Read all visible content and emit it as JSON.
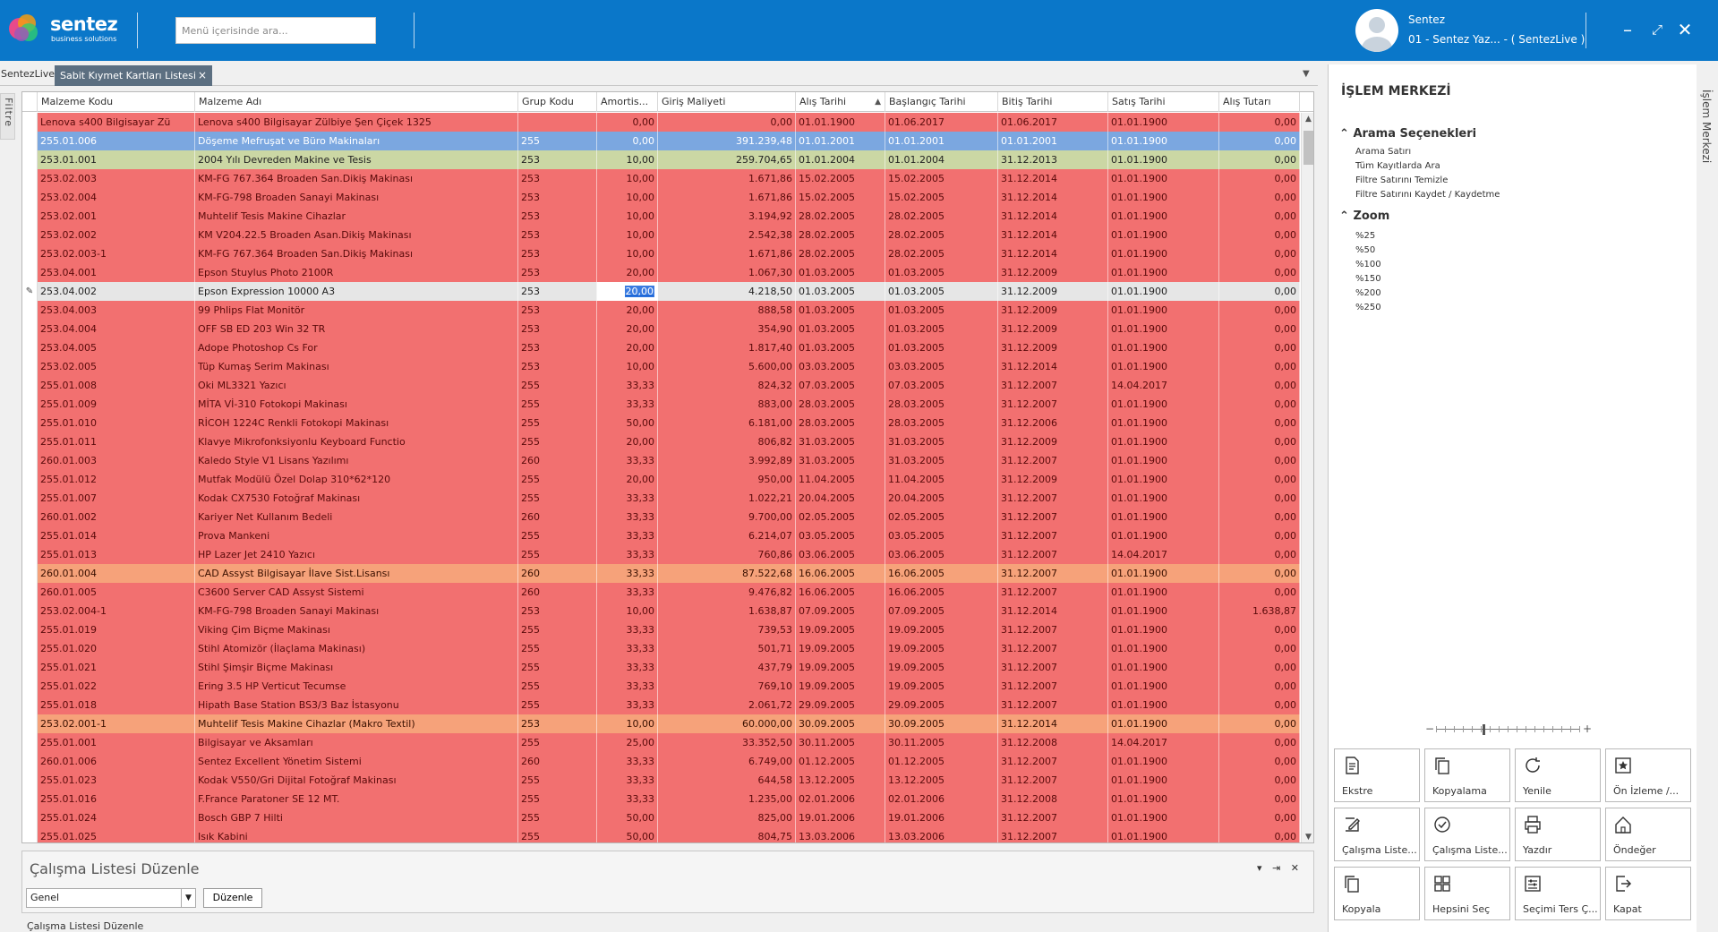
{
  "brand": {
    "name": "sentez",
    "sub": "business solutions"
  },
  "search": {
    "placeholder": "Menü içerisinde ara..."
  },
  "user": {
    "name": "Sentez",
    "company": "01 - Sentez Yaz... - ( SentezLive )"
  },
  "tabs": {
    "home": "SentezLive",
    "active": "Sabit Kıymet Kartları Listesi",
    "close": "×"
  },
  "filter_tab": "Filtre",
  "grid": {
    "columns": [
      "Malzeme Kodu",
      "Malzeme Adı",
      "Grup Kodu",
      "Amortis...",
      "Giriş Maliyeti",
      "Alış Tarihi",
      "Başlangıç Tarihi",
      "Bitiş Tarihi",
      "Satış Tarihi",
      "Alış Tutarı"
    ],
    "sorted_column": "Alış Tarihi",
    "rows": [
      {
        "c": [
          "Lenova s400 Bilgisayar Zü",
          "Lenova s400 Bilgisayar Zülbiye Şen Çiçek  1325",
          "",
          "0,00",
          "0,00",
          "01.01.1900",
          "01.06.2017",
          "01.06.2017",
          "01.01.1900",
          "0,00"
        ],
        "s": "r"
      },
      {
        "c": [
          "255.01.006",
          "Döşeme Mefruşat ve Büro Makinaları",
          "255",
          "0,00",
          "391.239,48",
          "01.01.2001",
          "01.01.2001",
          "01.01.2001",
          "01.01.1900",
          "0,00"
        ],
        "s": "sel"
      },
      {
        "c": [
          "253.01.001",
          "2004 Yılı Devreden Makine ve Tesis",
          "253",
          "10,00",
          "259.704,65",
          "01.01.2004",
          "01.01.2004",
          "31.12.2013",
          "01.01.1900",
          "0,00"
        ],
        "s": "grn"
      },
      {
        "c": [
          "253.02.003",
          "KM-FG 767.364 Broaden San.Dikiş Makinası",
          "253",
          "10,00",
          "1.671,86",
          "15.02.2005",
          "15.02.2005",
          "31.12.2014",
          "01.01.1900",
          "0,00"
        ],
        "s": "r"
      },
      {
        "c": [
          "253.02.004",
          "KM-FG-798 Broaden Sanayi Makinası",
          "253",
          "10,00",
          "1.671,86",
          "15.02.2005",
          "15.02.2005",
          "31.12.2014",
          "01.01.1900",
          "0,00"
        ],
        "s": "r"
      },
      {
        "c": [
          "253.02.001",
          "Muhtelif Tesis Makine Cihazlar",
          "253",
          "10,00",
          "3.194,92",
          "28.02.2005",
          "28.02.2005",
          "31.12.2014",
          "01.01.1900",
          "0,00"
        ],
        "s": "r"
      },
      {
        "c": [
          "253.02.002",
          "KM V204.22.5 Broaden Asan.Dikiş Makinası",
          "253",
          "10,00",
          "2.542,38",
          "28.02.2005",
          "28.02.2005",
          "31.12.2014",
          "01.01.1900",
          "0,00"
        ],
        "s": "r"
      },
      {
        "c": [
          "253.02.003-1",
          "KM-FG 767.364 Broaden San.Dikiş Makinası",
          "253",
          "10,00",
          "1.671,86",
          "28.02.2005",
          "28.02.2005",
          "31.12.2014",
          "01.01.1900",
          "0,00"
        ],
        "s": "r"
      },
      {
        "c": [
          "253.04.001",
          "Epson Stuylus Photo 2100R",
          "253",
          "20,00",
          "1.067,30",
          "01.03.2005",
          "01.03.2005",
          "31.12.2009",
          "01.01.1900",
          "0,00"
        ],
        "s": "r"
      },
      {
        "c": [
          "253.04.002",
          "Epson Expression 10000 A3",
          "253",
          "20,00",
          "4.218,50",
          "01.03.2005",
          "01.03.2005",
          "31.12.2009",
          "01.01.1900",
          "0,00"
        ],
        "s": "foc",
        "edit": true
      },
      {
        "c": [
          "253.04.003",
          "99 Phlips Flat Monitör",
          "253",
          "20,00",
          "888,58",
          "01.03.2005",
          "01.03.2005",
          "31.12.2009",
          "01.01.1900",
          "0,00"
        ],
        "s": "r"
      },
      {
        "c": [
          "253.04.004",
          "OFF SB ED 203 Win 32 TR",
          "253",
          "20,00",
          "354,90",
          "01.03.2005",
          "01.03.2005",
          "31.12.2009",
          "01.01.1900",
          "0,00"
        ],
        "s": "r"
      },
      {
        "c": [
          "253.04.005",
          "Adope Photoshop Cs For",
          "253",
          "20,00",
          "1.817,40",
          "01.03.2005",
          "01.03.2005",
          "31.12.2009",
          "01.01.1900",
          "0,00"
        ],
        "s": "r"
      },
      {
        "c": [
          "253.02.005",
          "Tüp Kumaş Serim Makinası",
          "253",
          "10,00",
          "5.600,00",
          "03.03.2005",
          "03.03.2005",
          "31.12.2014",
          "01.01.1900",
          "0,00"
        ],
        "s": "r"
      },
      {
        "c": [
          "255.01.008",
          "Oki ML3321 Yazıcı",
          "255",
          "33,33",
          "824,32",
          "07.03.2005",
          "07.03.2005",
          "31.12.2007",
          "14.04.2017",
          "0,00"
        ],
        "s": "r"
      },
      {
        "c": [
          "255.01.009",
          "MİTA Vİ-310 Fotokopi Makinası",
          "255",
          "33,33",
          "883,00",
          "28.03.2005",
          "28.03.2005",
          "31.12.2007",
          "01.01.1900",
          "0,00"
        ],
        "s": "r"
      },
      {
        "c": [
          "255.01.010",
          "RİCOH 1224C Renkli Fotokopi Makinası",
          "255",
          "50,00",
          "6.181,00",
          "28.03.2005",
          "28.03.2005",
          "31.12.2006",
          "01.01.1900",
          "0,00"
        ],
        "s": "r"
      },
      {
        "c": [
          "255.01.011",
          "Klavye Mikrofonksiyonlu Keyboard Functio",
          "255",
          "20,00",
          "806,82",
          "31.03.2005",
          "31.03.2005",
          "31.12.2009",
          "01.01.1900",
          "0,00"
        ],
        "s": "r"
      },
      {
        "c": [
          "260.01.003",
          "Kaledo Style V1 Lisans Yazılımı",
          "260",
          "33,33",
          "3.992,89",
          "31.03.2005",
          "31.03.2005",
          "31.12.2007",
          "01.01.1900",
          "0,00"
        ],
        "s": "r"
      },
      {
        "c": [
          "255.01.012",
          "Mutfak Modülü Özel Dolap 310*62*120",
          "255",
          "20,00",
          "950,00",
          "11.04.2005",
          "11.04.2005",
          "31.12.2009",
          "01.01.1900",
          "0,00"
        ],
        "s": "r"
      },
      {
        "c": [
          "255.01.007",
          "Kodak CX7530 Fotoğraf Makinası",
          "255",
          "33,33",
          "1.022,21",
          "20.04.2005",
          "20.04.2005",
          "31.12.2007",
          "01.01.1900",
          "0,00"
        ],
        "s": "r"
      },
      {
        "c": [
          "260.01.002",
          "Kariyer Net Kullanım Bedeli",
          "260",
          "33,33",
          "9.700,00",
          "02.05.2005",
          "02.05.2005",
          "31.12.2007",
          "01.01.1900",
          "0,00"
        ],
        "s": "r"
      },
      {
        "c": [
          "255.01.014",
          "Prova Mankeni",
          "255",
          "33,33",
          "6.214,07",
          "03.05.2005",
          "03.05.2005",
          "31.12.2007",
          "01.01.1900",
          "0,00"
        ],
        "s": "r"
      },
      {
        "c": [
          "255.01.013",
          "HP Lazer Jet 2410 Yazıcı",
          "255",
          "33,33",
          "760,86",
          "03.06.2005",
          "03.06.2005",
          "31.12.2007",
          "14.04.2017",
          "0,00"
        ],
        "s": "r"
      },
      {
        "c": [
          "260.01.004",
          "CAD Assyst Bilgisayar İlave Sist.Lisansı",
          "260",
          "33,33",
          "87.522,68",
          "16.06.2005",
          "16.06.2005",
          "31.12.2007",
          "01.01.1900",
          "0,00"
        ],
        "s": "org"
      },
      {
        "c": [
          "260.01.005",
          "C3600 Server CAD Assyst Sistemi",
          "260",
          "33,33",
          "9.476,82",
          "16.06.2005",
          "16.06.2005",
          "31.12.2007",
          "01.01.1900",
          "0,00"
        ],
        "s": "r"
      },
      {
        "c": [
          "253.02.004-1",
          "KM-FG-798 Broaden Sanayi Makinası",
          "253",
          "10,00",
          "1.638,87",
          "07.09.2005",
          "07.09.2005",
          "31.12.2014",
          "01.01.1900",
          "1.638,87"
        ],
        "s": "r"
      },
      {
        "c": [
          "255.01.019",
          "Viking Çim Biçme Makinası",
          "255",
          "33,33",
          "739,53",
          "19.09.2005",
          "19.09.2005",
          "31.12.2007",
          "01.01.1900",
          "0,00"
        ],
        "s": "r"
      },
      {
        "c": [
          "255.01.020",
          "Stihl Atomizör (İlaçlama Makinası)",
          "255",
          "33,33",
          "501,71",
          "19.09.2005",
          "19.09.2005",
          "31.12.2007",
          "01.01.1900",
          "0,00"
        ],
        "s": "r"
      },
      {
        "c": [
          "255.01.021",
          "Stihl Şimşir Biçme Makinası",
          "255",
          "33,33",
          "437,79",
          "19.09.2005",
          "19.09.2005",
          "31.12.2007",
          "01.01.1900",
          "0,00"
        ],
        "s": "r"
      },
      {
        "c": [
          "255.01.022",
          "Ering 3.5 HP Verticut Tecumse",
          "255",
          "33,33",
          "769,10",
          "19.09.2005",
          "19.09.2005",
          "31.12.2007",
          "01.01.1900",
          "0,00"
        ],
        "s": "r"
      },
      {
        "c": [
          "255.01.018",
          "Hipath Base Station BS3/3 Baz İstasyonu",
          "255",
          "33,33",
          "2.061,72",
          "29.09.2005",
          "29.09.2005",
          "31.12.2007",
          "01.01.1900",
          "0,00"
        ],
        "s": "r"
      },
      {
        "c": [
          "253.02.001-1",
          "Muhtelif Tesis Makine Cihazlar (Makro Textil)",
          "253",
          "10,00",
          "60.000,00",
          "30.09.2005",
          "30.09.2005",
          "31.12.2014",
          "01.01.1900",
          "0,00"
        ],
        "s": "org"
      },
      {
        "c": [
          "255.01.001",
          "Bilgisayar ve Aksamları",
          "255",
          "25,00",
          "33.352,50",
          "30.11.2005",
          "30.11.2005",
          "31.12.2008",
          "14.04.2017",
          "0,00"
        ],
        "s": "r"
      },
      {
        "c": [
          "260.01.006",
          "Sentez Excellent Yönetim Sistemi",
          "260",
          "33,33",
          "6.749,00",
          "01.12.2005",
          "01.12.2005",
          "31.12.2007",
          "01.01.1900",
          "0,00"
        ],
        "s": "r"
      },
      {
        "c": [
          "255.01.023",
          "Kodak V550/Gri Dijital Fotoğraf Makinası",
          "255",
          "33,33",
          "644,58",
          "13.12.2005",
          "13.12.2005",
          "31.12.2007",
          "01.01.1900",
          "0,00"
        ],
        "s": "r"
      },
      {
        "c": [
          "255.01.016",
          "F.France Paratoner SE 12 MT.",
          "255",
          "33,33",
          "1.235,00",
          "02.01.2006",
          "02.01.2006",
          "31.12.2008",
          "01.01.1900",
          "0,00"
        ],
        "s": "r"
      },
      {
        "c": [
          "255.01.024",
          "Bosch GBP 7 Hilti",
          "255",
          "50,00",
          "825,00",
          "19.01.2006",
          "19.01.2006",
          "31.12.2007",
          "01.01.1900",
          "0,00"
        ],
        "s": "r"
      },
      {
        "c": [
          "255.01.025",
          "Isık Kabini",
          "255",
          "50,00",
          "804,75",
          "13.03.2006",
          "13.03.2006",
          "31.12.2007",
          "01.01.1900",
          "0,00"
        ],
        "s": "r"
      }
    ]
  },
  "worklist": {
    "title": "Çalışma Listesi Düzenle",
    "select_value": "Genel",
    "button": "Düzenle",
    "controls": "▾ ⇥ ✕"
  },
  "status": "Çalışma Listesi Düzenle",
  "side": {
    "title": "İŞLEM MERKEZİ",
    "vertical_tab": "İşlem Merkezi",
    "search_section": "Arama Seçenekleri",
    "search_items": [
      "Arama Satırı",
      "Tüm Kayıtlarda Ara",
      "Filtre Satırını Temizle",
      "Filtre Satırını Kaydet / Kaydetme"
    ],
    "zoom_section": "Zoom",
    "zoom_items": [
      "%25",
      "%50",
      "%100",
      "%150",
      "%200",
      "%250"
    ],
    "tiles": [
      {
        "label": "Ekstre",
        "icon": "document-icon"
      },
      {
        "label": "Kopyalama",
        "icon": "copy-icon"
      },
      {
        "label": "Yenile",
        "icon": "refresh-icon"
      },
      {
        "label": "Ön İzleme /...",
        "icon": "preview-icon"
      },
      {
        "label": "Çalışma Liste...",
        "icon": "edit-list-icon"
      },
      {
        "label": "Çalışma Liste...",
        "icon": "check-list-icon"
      },
      {
        "label": "Yazdır",
        "icon": "printer-icon"
      },
      {
        "label": "Öndeğer",
        "icon": "home-icon"
      },
      {
        "label": "Kopyala",
        "icon": "copy-icon"
      },
      {
        "label": "Hepsini Seç",
        "icon": "grid-icon"
      },
      {
        "label": "Seçimi Ters Ç...",
        "icon": "sliders-icon"
      },
      {
        "label": "Kapat",
        "icon": "exit-icon"
      }
    ]
  },
  "colors": {
    "topbar": "#0a77c9",
    "row_red": "#f27070",
    "row_selected": "#7ba7e0",
    "row_green": "#cbd7a4",
    "row_orange": "#f6a27a"
  }
}
